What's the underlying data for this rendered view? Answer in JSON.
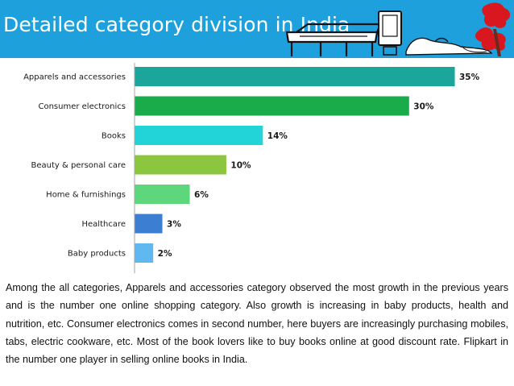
{
  "slide": {
    "title": "Detailed category division in India",
    "paragraph": "Among the all categories, Apparels and accessories category observed the most growth in the previous years and is the number one online shopping category. Also growth is increasing in baby products, health and nutrition, etc. Consumer electronics comes in second number, here buyers are increasingly purchasing mobiles, tabs, electric cookware, etc. Most of the book lovers like to buy books online at  good discount rate. Flipkart in the number one player in selling online books in India."
  },
  "colors": {
    "header": "#1ea0dc",
    "axis": "#a6a6a6"
  },
  "icons": [
    "table-sketch-icon",
    "monitor-sketch-icon",
    "shoe-sketch-icon",
    "red-flower-icon"
  ],
  "chart_data": {
    "type": "bar",
    "orientation": "horizontal",
    "categories": [
      "Apparels and accessories",
      "Consumer electronics",
      "Books",
      "Beauty & personal care",
      "Home & furnishings",
      "Healthcare",
      "Baby products"
    ],
    "values": [
      35,
      30,
      14,
      10,
      6,
      3,
      2
    ],
    "labels": [
      "35%",
      "30%",
      "14%",
      "10%",
      "6%",
      "3%",
      "2%"
    ],
    "colors": [
      "#1aa69a",
      "#1aac4a",
      "#22d4d8",
      "#8cc63f",
      "#5ed77c",
      "#3c7fd2",
      "#5fb8f0"
    ],
    "unit": "%",
    "xlim": [
      0,
      35
    ],
    "grid": false,
    "legend": "none"
  }
}
